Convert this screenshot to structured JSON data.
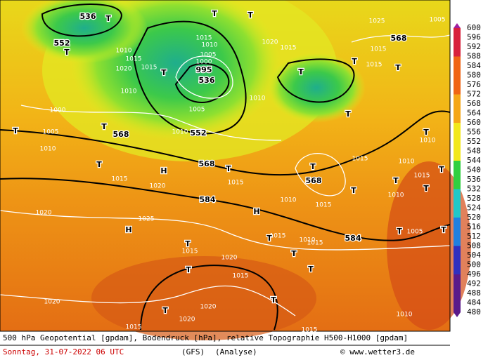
{
  "map": {
    "labels": [
      "536",
      "552",
      "536",
      "552",
      "568",
      "568",
      "568",
      "584",
      "584",
      "568",
      "1010",
      "1015",
      "1020",
      "1010",
      "1000",
      "1005",
      "1010",
      "1015",
      "1020",
      "1020",
      "1025",
      "1015",
      "1020",
      "1015",
      "1020",
      "1020",
      "1020",
      "1015",
      "1015",
      "1010",
      "1015",
      "1015",
      "1010",
      "1025",
      "1015",
      "1015",
      "1015",
      "1020",
      "1005",
      "1010",
      "1015",
      "1010",
      "1005",
      "1000",
      "1005",
      "1015",
      "1010",
      "1005",
      "995",
      "1010",
      "1015",
      "1015",
      "1010",
      "1010",
      "1015",
      "1015",
      "1010",
      "T",
      "T",
      "T",
      "T",
      "T",
      "T",
      "T",
      "T",
      "T",
      "T",
      "T",
      "T",
      "T",
      "T",
      "T",
      "T",
      "T",
      "T",
      "T",
      "T",
      "T",
      "T",
      "T",
      "T",
      "T",
      "T",
      "T",
      "T",
      "H",
      "H",
      "H"
    ]
  },
  "legend": {
    "levels": [
      600,
      596,
      592,
      588,
      584,
      580,
      576,
      572,
      568,
      564,
      560,
      556,
      552,
      548,
      544,
      540,
      536,
      532,
      528,
      524,
      520,
      516,
      512,
      508,
      504,
      500,
      496,
      492,
      488,
      484,
      480
    ]
  },
  "footer": {
    "description": "500 hPa Geopotential [gpdam], Bodendruck [hPa], relative Topographie H500-H1000 [gpdam]",
    "date": "Sonntag, 31-07-2022  06 UTC",
    "model": "(GFS)",
    "run": "(Analyse)",
    "credit": "© www.wetter3.de"
  }
}
